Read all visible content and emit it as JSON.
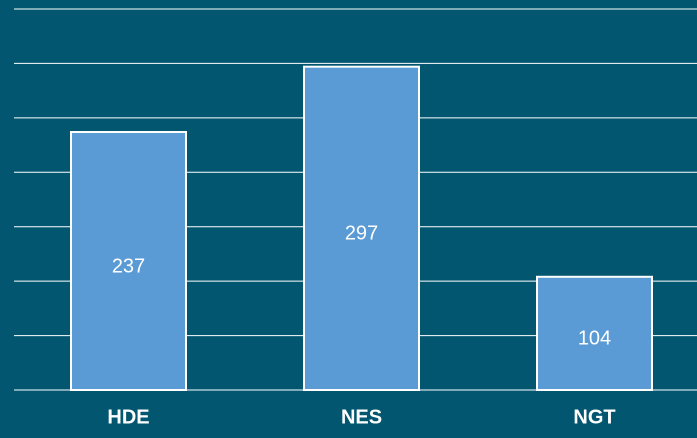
{
  "chart_data": {
    "type": "bar",
    "categories": [
      "HDE",
      "NES",
      "NGT"
    ],
    "values": [
      237,
      297,
      104
    ],
    "color": "#5b9bd5",
    "ylim": [
      0,
      350
    ],
    "yticks": [
      0,
      50,
      100,
      150,
      200,
      250,
      300,
      350
    ],
    "grid": true
  }
}
